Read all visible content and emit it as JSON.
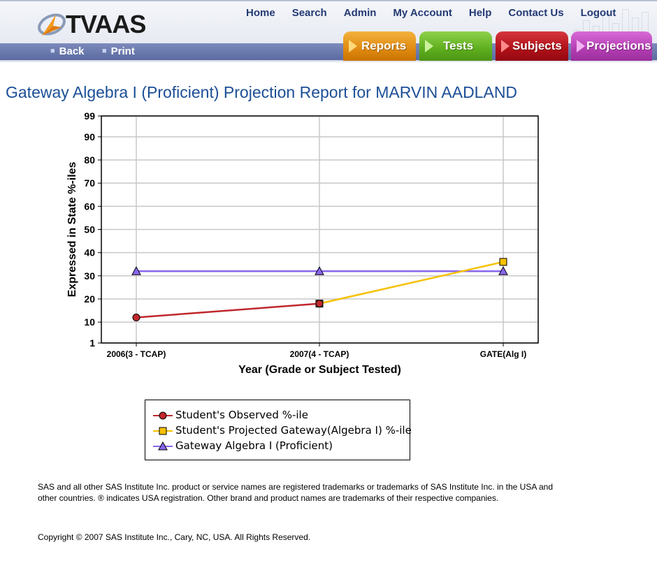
{
  "app": {
    "logo_text": "TVAAS"
  },
  "nav": {
    "home": "Home",
    "search": "Search",
    "admin": "Admin",
    "my_account": "My Account",
    "help": "Help",
    "contact_us": "Contact Us",
    "logout": "Logout"
  },
  "subnav": {
    "back": "Back",
    "print": "Print"
  },
  "tabs": {
    "reports": "Reports",
    "tests": "Tests",
    "subjects": "Subjects",
    "projections": "Projections"
  },
  "report": {
    "title": "Gateway Algebra I (Proficient) Projection Report for MARVIN AADLAND"
  },
  "chart_data": {
    "type": "line",
    "categories": [
      "2006(3 - TCAP)",
      "2007(4 - TCAP)",
      "GATE(Alg I)"
    ],
    "xlabel": "Year (Grade or Subject Tested)",
    "ylabel": "Expressed in State %-iles",
    "yticks": [
      1,
      10,
      20,
      30,
      40,
      50,
      60,
      70,
      80,
      90,
      99
    ],
    "ylim": [
      1,
      99
    ],
    "grid": true,
    "series": [
      {
        "name": "Student's Observed %-ile",
        "color": "#c0282d",
        "marker": "circle",
        "values": [
          12,
          18,
          null
        ]
      },
      {
        "name": "Student's Projected Gateway(Algebra I) %-ile",
        "color": "#f6c100",
        "marker": "square",
        "values": [
          null,
          18,
          36
        ]
      },
      {
        "name": "Gateway Algebra I (Proficient)",
        "color": "#8866ee",
        "marker": "triangle",
        "values": [
          32,
          32,
          32
        ]
      }
    ],
    "legend_position": "bottom"
  },
  "footer": {
    "trademark": "SAS and all other SAS Institute Inc. product or service names are registered trademarks or trademarks of SAS Institute Inc. in the USA and other countries. ® indicates USA registration. Other brand and product names are trademarks of their respective companies.",
    "copyright": "Copyright © 2007 SAS Institute Inc., Cary, NC, USA. All Rights Reserved."
  }
}
